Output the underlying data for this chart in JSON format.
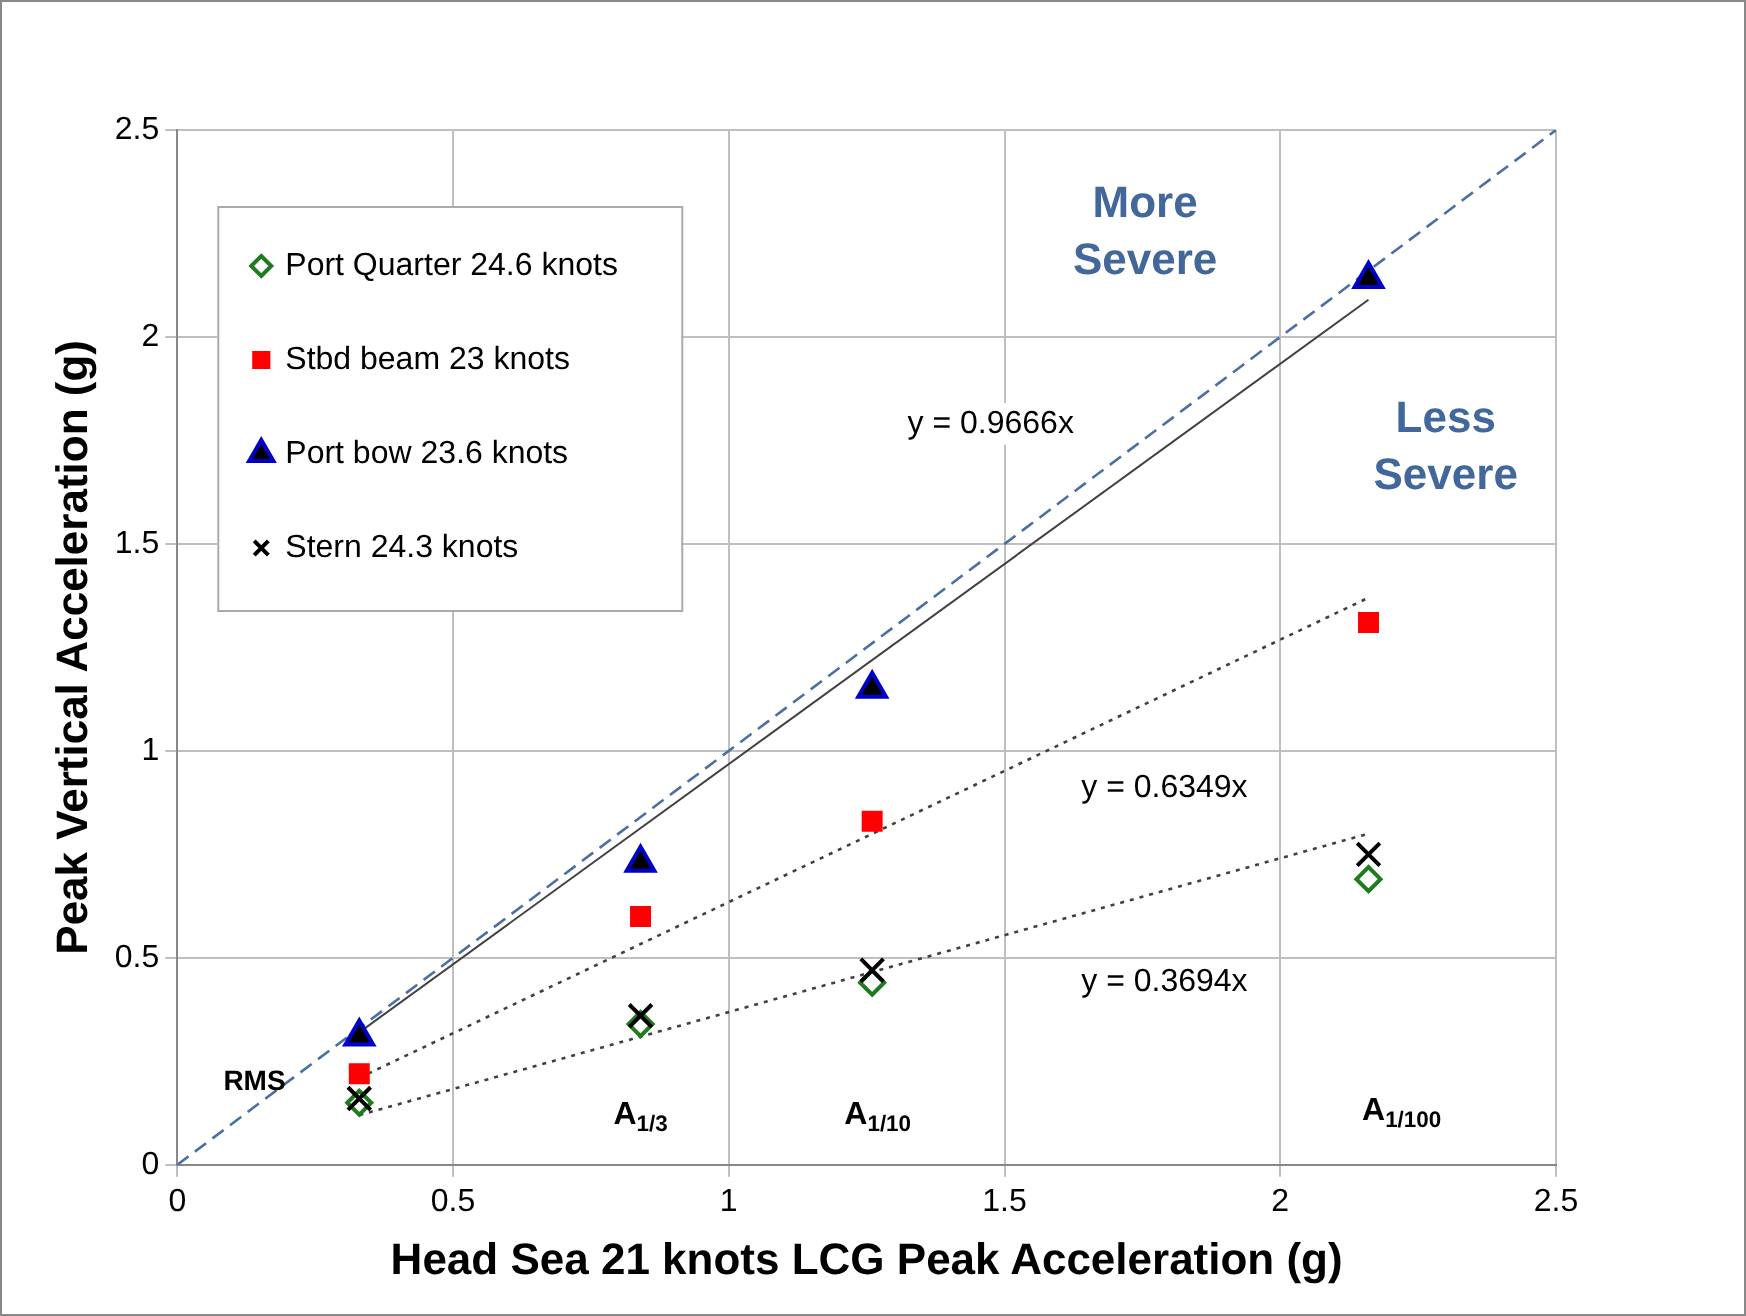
{
  "chart_data": {
    "type": "scatter",
    "xlabel": "Head Sea 21 knots LCG Peak Acceleration (g)",
    "ylabel": "Peak Vertical Acceleration (g)",
    "xlim": [
      0,
      2.5
    ],
    "xticks": [
      0,
      0.5,
      1,
      1.5,
      2,
      2.5
    ],
    "ylim": [
      0,
      2.5
    ],
    "yticks": [
      0,
      0.5,
      1,
      1.5,
      2,
      2.5
    ],
    "grid": true,
    "legend": "top left",
    "series": [
      {
        "name": "Port Quarter 24.6 knots",
        "color": "#1e7b1e",
        "marker": "diamond",
        "x": [
          0.33,
          0.84,
          1.26,
          2.16
        ],
        "values": [
          0.15,
          0.34,
          0.44,
          0.69
        ]
      },
      {
        "name": "Stbd beam 23 knots",
        "color": "#ff0000",
        "marker": "square",
        "x": [
          0.33,
          0.84,
          1.26,
          2.16
        ],
        "values": [
          0.22,
          0.6,
          0.83,
          1.31
        ]
      },
      {
        "name": "Port bow 23.6 knots",
        "color": "#0000cc",
        "marker": "triangle",
        "x": [
          0.33,
          0.84,
          1.26,
          2.16
        ],
        "values": [
          0.31,
          0.73,
          1.15,
          2.14
        ]
      },
      {
        "name": "Stern 24.3 knots",
        "color": "#000000",
        "marker": "cross",
        "x": [
          0.33,
          0.84,
          1.26,
          2.16
        ],
        "values": [
          0.16,
          0.36,
          0.47,
          0.75
        ]
      },
      {
        "type": "line",
        "color": "#4a6fa5",
        "line_style": "dashed",
        "marker": "none",
        "x": [
          0,
          2.5
        ],
        "values": [
          0,
          2.5
        ]
      },
      {
        "type": "line",
        "color": "#404040",
        "line_style": "solid",
        "marker": "none",
        "x": [
          0.33,
          2.16
        ],
        "values": [
          0.32,
          2.09
        ]
      },
      {
        "type": "line",
        "color": "#404040",
        "line_style": "dotted",
        "marker": "none",
        "x": [
          0.33,
          2.16
        ],
        "values": [
          0.21,
          1.37
        ]
      },
      {
        "type": "line",
        "color": "#404040",
        "line_style": "dotted",
        "marker": "none",
        "x": [
          0.33,
          2.16
        ],
        "values": [
          0.12,
          0.8
        ]
      }
    ],
    "annotations": [
      "More\nSevere",
      "Less\nSevere",
      "y = 0.9666x",
      "y = 0.6349x",
      "y = 0.3694x",
      "RMS",
      "A$_{1/3}$",
      "A$_{1/10}$",
      "A$_{1/100}$"
    ]
  }
}
